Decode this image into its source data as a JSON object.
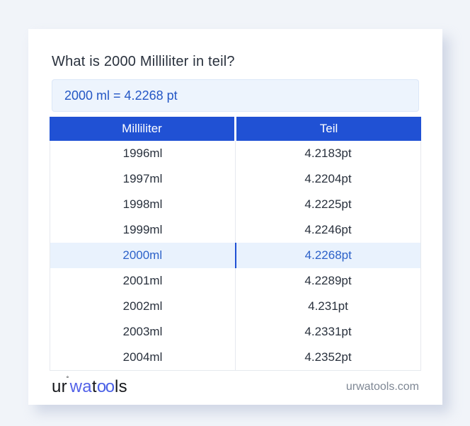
{
  "page": {
    "title": "What is 2000 Milliliter in teil?",
    "result_text": "2000 ml = 4.2268 pt"
  },
  "table": {
    "headers": {
      "milliliter": "Milliliter",
      "teil": "Teil"
    },
    "rows": [
      {
        "ml": "1996ml",
        "teil": "4.2183pt",
        "highlighted": false
      },
      {
        "ml": "1997ml",
        "teil": "4.2204pt",
        "highlighted": false
      },
      {
        "ml": "1998ml",
        "teil": "4.2225pt",
        "highlighted": false
      },
      {
        "ml": "1999ml",
        "teil": "4.2246pt",
        "highlighted": false
      },
      {
        "ml": "2000ml",
        "teil": "4.2268pt",
        "highlighted": true
      },
      {
        "ml": "2001ml",
        "teil": "4.2289pt",
        "highlighted": false
      },
      {
        "ml": "2002ml",
        "teil": "4.231pt",
        "highlighted": false
      },
      {
        "ml": "2003ml",
        "teil": "4.2331pt",
        "highlighted": false
      },
      {
        "ml": "2004ml",
        "teil": "4.2352pt",
        "highlighted": false
      }
    ]
  },
  "footer": {
    "logo": {
      "part_ur": "ur",
      "degree_mark": "˚",
      "part_wa": "wa",
      "part_t": "t",
      "part_oo": "oo",
      "part_ls": "ls"
    },
    "site": "urwatools.com"
  },
  "colors": {
    "page_background": "#f1f4f9",
    "card_background": "#ffffff",
    "header_blue": "#2051d4",
    "result_box_background": "#edf4fd",
    "result_text_blue": "#2457c5",
    "highlight_row_background": "#e9f2fd",
    "highlight_text_blue": "#2d62c9",
    "body_text": "#29313d",
    "logo_blue": "#5261e8",
    "site_link_gray": "#7e8794"
  }
}
